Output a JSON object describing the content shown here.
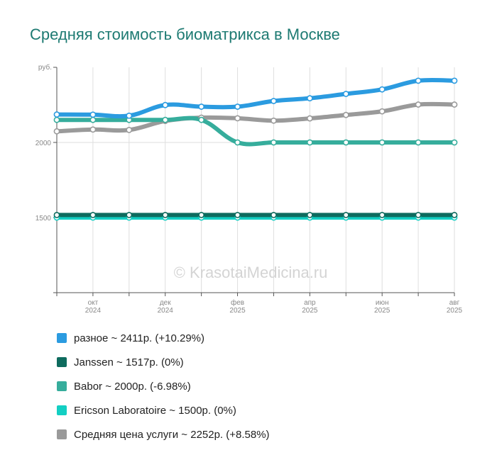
{
  "chart_data": {
    "type": "line",
    "title": "Средняя стоимость биоматрикса в Москве",
    "ylabel": "руб.",
    "ylim": [
      1000,
      2500
    ],
    "y_ticks": [
      1500,
      2000
    ],
    "x": [
      "2024-09",
      "2024-10",
      "2024-11",
      "2024-12",
      "2025-01",
      "2025-02",
      "2025-03",
      "2025-04",
      "2025-05",
      "2025-06",
      "2025-07",
      "2025-08"
    ],
    "x_tick_labels": [
      {
        "month": "окт",
        "year": "2024",
        "index": 1
      },
      {
        "month": "дек",
        "year": "2024",
        "index": 3
      },
      {
        "month": "фев",
        "year": "2025",
        "index": 5
      },
      {
        "month": "апр",
        "year": "2025",
        "index": 7
      },
      {
        "month": "июн",
        "year": "2025",
        "index": 9
      },
      {
        "month": "авг",
        "year": "2025",
        "index": 11
      }
    ],
    "grid": true,
    "watermark": "© KrasotaiMedicina.ru",
    "series": [
      {
        "name": "разное",
        "color": "#2b9be0",
        "legend": "разное ~ 2411р. (+10.29%)",
        "values": [
          2186,
          2185,
          2178,
          2249,
          2238,
          2238,
          2276,
          2294,
          2323,
          2353,
          2411,
          2411
        ]
      },
      {
        "name": "Janssen",
        "color": "#0e6b5e",
        "legend": "Janssen ~ 1517р. (0%)",
        "values": [
          1517,
          1517,
          1517,
          1517,
          1517,
          1517,
          1517,
          1517,
          1517,
          1517,
          1517,
          1517
        ]
      },
      {
        "name": "Babor",
        "color": "#36ad9c",
        "legend": "Babor ~ 2000р. (-6.98%)",
        "values": [
          2150,
          2150,
          2150,
          2150,
          2150,
          2000,
          2000,
          2000,
          2000,
          2000,
          2000,
          2000
        ]
      },
      {
        "name": "Ericson Laboratoire",
        "color": "#13cfc3",
        "legend": "Ericson Laboratoire ~ 1500р. (0%)",
        "values": [
          1500,
          1500,
          1500,
          1500,
          1500,
          1500,
          1500,
          1500,
          1500,
          1500,
          1500,
          1500
        ]
      },
      {
        "name": "Средняя цена услуги",
        "color": "#9a9a9a",
        "legend": "Средняя цена услуги ~ 2252р. (+8.58%)",
        "values": [
          2074,
          2086,
          2083,
          2143,
          2165,
          2161,
          2145,
          2160,
          2183,
          2207,
          2252,
          2252
        ]
      }
    ]
  }
}
